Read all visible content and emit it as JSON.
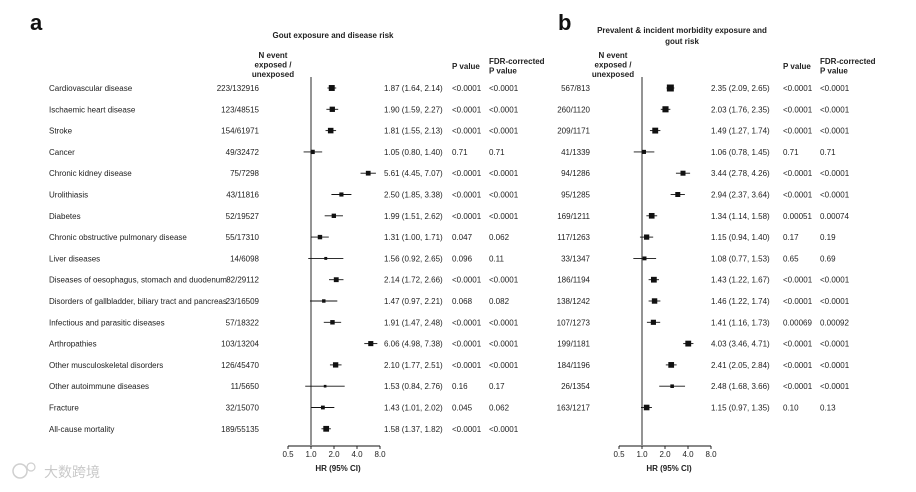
{
  "watermark": "大数跨境",
  "chart_data": [
    {
      "type": "forest",
      "panel": "a",
      "title": "Gout exposure and disease risk",
      "xlabel": "HR (95% CI)",
      "xscale": "log2",
      "xlim": [
        0.5,
        8.0
      ],
      "xticks": [
        "0.5",
        "1.0",
        "2.0",
        "4.0",
        "8.0"
      ],
      "reference_line": 1.0,
      "col_headers": {
        "events": [
          "N event",
          "exposed /",
          "unexposed"
        ],
        "p": "P value",
        "fdr": [
          "FDR-corrected",
          "P value"
        ]
      },
      "rows": [
        {
          "label": "Cardiovascular disease",
          "events": "223/132916",
          "hr": 1.87,
          "lo": 1.64,
          "hi": 2.14,
          "hr_text": "1.87 (1.64, 2.14)",
          "p": "<0.0001",
          "fdr": "<0.0001"
        },
        {
          "label": "Ischaemic heart disease",
          "events": "123/48515",
          "hr": 1.9,
          "lo": 1.59,
          "hi": 2.27,
          "hr_text": "1.90 (1.59, 2.27)",
          "p": "<0.0001",
          "fdr": "<0.0001"
        },
        {
          "label": "Stroke",
          "events": "154/61971",
          "hr": 1.81,
          "lo": 1.55,
          "hi": 2.13,
          "hr_text": "1.81 (1.55, 2.13)",
          "p": "<0.0001",
          "fdr": "<0.0001"
        },
        {
          "label": "Cancer",
          "events": "49/32472",
          "hr": 1.05,
          "lo": 0.8,
          "hi": 1.4,
          "hr_text": "1.05 (0.80, 1.40)",
          "p": "0.71",
          "fdr": "0.71"
        },
        {
          "label": "Chronic kidney disease",
          "events": "75/7298",
          "hr": 5.61,
          "lo": 4.45,
          "hi": 7.07,
          "hr_text": "5.61 (4.45, 7.07)",
          "p": "<0.0001",
          "fdr": "<0.0001"
        },
        {
          "label": "Urolithiasis",
          "events": "43/11816",
          "hr": 2.5,
          "lo": 1.85,
          "hi": 3.38,
          "hr_text": "2.50 (1.85, 3.38)",
          "p": "<0.0001",
          "fdr": "<0.0001"
        },
        {
          "label": "Diabetes",
          "events": "52/19527",
          "hr": 1.99,
          "lo": 1.51,
          "hi": 2.62,
          "hr_text": "1.99 (1.51, 2.62)",
          "p": "<0.0001",
          "fdr": "<0.0001"
        },
        {
          "label": "Chronic obstructive pulmonary disease",
          "events": "55/17310",
          "hr": 1.31,
          "lo": 1.0,
          "hi": 1.71,
          "hr_text": "1.31 (1.00, 1.71)",
          "p": "0.047",
          "fdr": "0.062"
        },
        {
          "label": "Liver diseases",
          "events": "14/6098",
          "hr": 1.56,
          "lo": 0.92,
          "hi": 2.65,
          "hr_text": "1.56 (0.92, 2.65)",
          "p": "0.096",
          "fdr": "0.11"
        },
        {
          "label": "Diseases of oesophagus, stomach and duodenum",
          "events": "82/29112",
          "hr": 2.14,
          "lo": 1.72,
          "hi": 2.66,
          "hr_text": "2.14 (1.72, 2.66)",
          "p": "<0.0001",
          "fdr": "<0.0001"
        },
        {
          "label": "Disorders of gallbladder, biliary tract and pancreas",
          "events": "23/16509",
          "hr": 1.47,
          "lo": 0.97,
          "hi": 2.21,
          "hr_text": "1.47 (0.97, 2.21)",
          "p": "0.068",
          "fdr": "0.082"
        },
        {
          "label": "Infectious and parasitic diseases",
          "events": "57/18322",
          "hr": 1.91,
          "lo": 1.47,
          "hi": 2.48,
          "hr_text": "1.91 (1.47, 2.48)",
          "p": "<0.0001",
          "fdr": "<0.0001"
        },
        {
          "label": "Arthropathies",
          "events": "103/13204",
          "hr": 6.06,
          "lo": 4.98,
          "hi": 7.38,
          "hr_text": "6.06 (4.98, 7.38)",
          "p": "<0.0001",
          "fdr": "<0.0001"
        },
        {
          "label": "Other musculoskeletal disorders",
          "events": "126/45470",
          "hr": 2.1,
          "lo": 1.77,
          "hi": 2.51,
          "hr_text": "2.10 (1.77, 2.51)",
          "p": "<0.0001",
          "fdr": "<0.0001"
        },
        {
          "label": "Other autoimmune diseases",
          "events": "11/5650",
          "hr": 1.53,
          "lo": 0.84,
          "hi": 2.76,
          "hr_text": "1.53 (0.84, 2.76)",
          "p": "0.16",
          "fdr": "0.17"
        },
        {
          "label": "Fracture",
          "events": "32/15070",
          "hr": 1.43,
          "lo": 1.01,
          "hi": 2.02,
          "hr_text": "1.43 (1.01, 2.02)",
          "p": "0.045",
          "fdr": "0.062"
        },
        {
          "label": "All-cause mortality",
          "events": "189/55135",
          "hr": 1.58,
          "lo": 1.37,
          "hi": 1.82,
          "hr_text": "1.58 (1.37, 1.82)",
          "p": "<0.0001",
          "fdr": "<0.0001"
        }
      ]
    },
    {
      "type": "forest",
      "panel": "b",
      "title": [
        "Prevalent & incident morbidity exposure and",
        "gout risk"
      ],
      "xlabel": "HR (95% CI)",
      "xscale": "log2",
      "xlim": [
        0.5,
        8.0
      ],
      "xticks": [
        "0.5",
        "1.0",
        "2.0",
        "4.0",
        "8.0"
      ],
      "reference_line": 1.0,
      "col_headers": {
        "events": [
          "N event",
          "exposed /",
          "unexposed"
        ],
        "p": "P value",
        "fdr": [
          "FDR-corrected",
          "P value"
        ]
      },
      "rows": [
        {
          "events": "567/813",
          "hr": 2.35,
          "lo": 2.09,
          "hi": 2.65,
          "hr_text": "2.35 (2.09, 2.65)",
          "p": "<0.0001",
          "fdr": "<0.0001"
        },
        {
          "events": "260/1120",
          "hr": 2.03,
          "lo": 1.76,
          "hi": 2.35,
          "hr_text": "2.03 (1.76, 2.35)",
          "p": "<0.0001",
          "fdr": "<0.0001"
        },
        {
          "events": "209/1171",
          "hr": 1.49,
          "lo": 1.27,
          "hi": 1.74,
          "hr_text": "1.49 (1.27, 1.74)",
          "p": "<0.0001",
          "fdr": "<0.0001"
        },
        {
          "events": "41/1339",
          "hr": 1.06,
          "lo": 0.78,
          "hi": 1.45,
          "hr_text": "1.06 (0.78, 1.45)",
          "p": "0.71",
          "fdr": "0.71"
        },
        {
          "events": "94/1286",
          "hr": 3.44,
          "lo": 2.78,
          "hi": 4.26,
          "hr_text": "3.44 (2.78, 4.26)",
          "p": "<0.0001",
          "fdr": "<0.0001"
        },
        {
          "events": "95/1285",
          "hr": 2.94,
          "lo": 2.37,
          "hi": 3.64,
          "hr_text": "2.94 (2.37, 3.64)",
          "p": "<0.0001",
          "fdr": "<0.0001"
        },
        {
          "events": "169/1211",
          "hr": 1.34,
          "lo": 1.14,
          "hi": 1.58,
          "hr_text": "1.34 (1.14, 1.58)",
          "p": "0.00051",
          "fdr": "0.00074"
        },
        {
          "events": "117/1263",
          "hr": 1.15,
          "lo": 0.94,
          "hi": 1.4,
          "hr_text": "1.15 (0.94, 1.40)",
          "p": "0.17",
          "fdr": "0.19"
        },
        {
          "events": "33/1347",
          "hr": 1.08,
          "lo": 0.77,
          "hi": 1.53,
          "hr_text": "1.08 (0.77, 1.53)",
          "p": "0.65",
          "fdr": "0.69"
        },
        {
          "events": "186/1194",
          "hr": 1.43,
          "lo": 1.22,
          "hi": 1.67,
          "hr_text": "1.43 (1.22, 1.67)",
          "p": "<0.0001",
          "fdr": "<0.0001"
        },
        {
          "events": "138/1242",
          "hr": 1.46,
          "lo": 1.22,
          "hi": 1.74,
          "hr_text": "1.46 (1.22, 1.74)",
          "p": "<0.0001",
          "fdr": "<0.0001"
        },
        {
          "events": "107/1273",
          "hr": 1.41,
          "lo": 1.16,
          "hi": 1.73,
          "hr_text": "1.41 (1.16, 1.73)",
          "p": "0.00069",
          "fdr": "0.00092"
        },
        {
          "events": "199/1181",
          "hr": 4.03,
          "lo": 3.46,
          "hi": 4.71,
          "hr_text": "4.03 (3.46, 4.71)",
          "p": "<0.0001",
          "fdr": "<0.0001"
        },
        {
          "events": "184/1196",
          "hr": 2.41,
          "lo": 2.05,
          "hi": 2.84,
          "hr_text": "2.41 (2.05, 2.84)",
          "p": "<0.0001",
          "fdr": "<0.0001"
        },
        {
          "events": "26/1354",
          "hr": 2.48,
          "lo": 1.68,
          "hi": 3.66,
          "hr_text": "2.48 (1.68, 3.66)",
          "p": "<0.0001",
          "fdr": "<0.0001"
        },
        {
          "events": "163/1217",
          "hr": 1.15,
          "lo": 0.97,
          "hi": 1.35,
          "hr_text": "1.15 (0.97, 1.35)",
          "p": "0.10",
          "fdr": "0.13"
        }
      ]
    }
  ]
}
